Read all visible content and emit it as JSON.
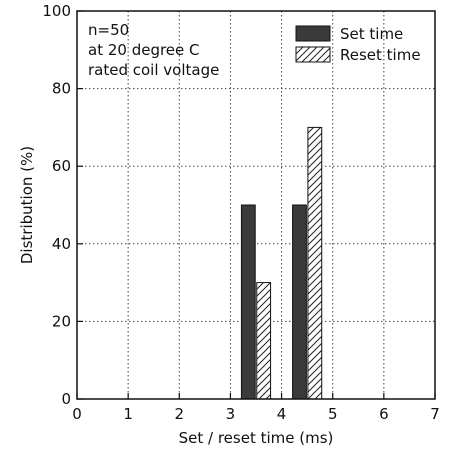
{
  "chart_data": {
    "type": "bar",
    "xlabel": "Set / reset time (ms)",
    "ylabel": "Distribution (%)",
    "xlim": [
      0,
      7
    ],
    "ylim": [
      0,
      100
    ],
    "xticks": [
      "0",
      "1",
      "2",
      "3",
      "4",
      "5",
      "6",
      "7"
    ],
    "yticks": [
      "0",
      "20",
      "40",
      "60",
      "80",
      "100"
    ],
    "grid": true,
    "legend_position": "top-right",
    "annotation": [
      "n=50",
      "at 20 degree C",
      "rated coil voltage"
    ],
    "series": [
      {
        "name": "Set time",
        "style": "solid",
        "color": "#3a3a3a",
        "points": [
          {
            "x": 3.35,
            "y": 50
          },
          {
            "x": 4.35,
            "y": 50
          }
        ]
      },
      {
        "name": "Reset time",
        "style": "hatched",
        "color": "#ffffff",
        "points": [
          {
            "x": 3.65,
            "y": 30
          },
          {
            "x": 4.65,
            "y": 70
          }
        ]
      }
    ]
  }
}
